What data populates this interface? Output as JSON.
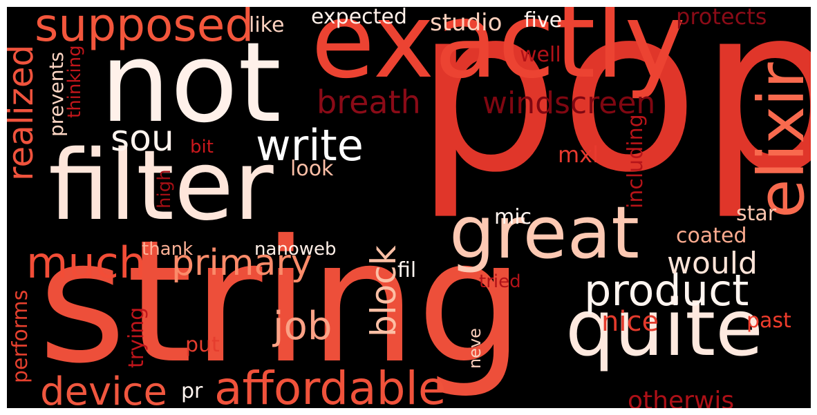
{
  "cloud": {
    "background": "#000000",
    "words": [
      {
        "id": "pop",
        "text": "pop",
        "color": "#e0362a"
      },
      {
        "id": "string",
        "text": "string",
        "color": "#ed4f3a"
      },
      {
        "id": "not",
        "text": "not",
        "color": "#fff1ea"
      },
      {
        "id": "exactly",
        "text": "exactly",
        "color": "#ec4332"
      },
      {
        "id": "filter",
        "text": "filter",
        "color": "#fee6db"
      },
      {
        "id": "quite",
        "text": "quite",
        "color": "#fee9df"
      },
      {
        "id": "great",
        "text": "great",
        "color": "#fdc9b3"
      },
      {
        "id": "elixir",
        "text": "elixir",
        "color": "#f86a4e"
      },
      {
        "id": "supposed",
        "text": "supposed",
        "color": "#f3563c"
      },
      {
        "id": "affordable",
        "text": "affordable",
        "color": "#f0523b"
      },
      {
        "id": "product",
        "text": "product",
        "color": "#fff5f0"
      },
      {
        "id": "much",
        "text": "much",
        "color": "#f24d37"
      },
      {
        "id": "write",
        "text": "write",
        "color": "#ffffff"
      },
      {
        "id": "device",
        "text": "device",
        "color": "#f0573f"
      },
      {
        "id": "primary",
        "text": "primary",
        "color": "#fb8b6a"
      },
      {
        "id": "block",
        "text": "block",
        "color": "#fcbfa5"
      },
      {
        "id": "realized",
        "text": "realized",
        "color": "#f0533d"
      },
      {
        "id": "breath",
        "text": "breath",
        "color": "#8a0b17"
      },
      {
        "id": "windscreen",
        "text": "windscreen",
        "color": "#7f0711"
      },
      {
        "id": "job",
        "text": "job",
        "color": "#fba286"
      },
      {
        "id": "sou",
        "text": "sou",
        "color": "#fff4ee"
      },
      {
        "id": "would",
        "text": "would",
        "color": "#fee4d8"
      },
      {
        "id": "nice",
        "text": "nice",
        "color": "#e33a2c"
      },
      {
        "id": "otherwis",
        "text": "otherwis",
        "color": "#ad1017"
      },
      {
        "id": "studio",
        "text": "studio",
        "color": "#fdd1bd"
      },
      {
        "id": "protects",
        "text": "protects",
        "color": "#8a0b17"
      },
      {
        "id": "expected",
        "text": "expected",
        "color": "#fff1ea"
      },
      {
        "id": "like",
        "text": "like",
        "color": "#fdd3c1"
      },
      {
        "id": "five",
        "text": "five",
        "color": "#fff5f0"
      },
      {
        "id": "well",
        "text": "well",
        "color": "#b11218"
      },
      {
        "id": "prevents",
        "text": "prevents",
        "color": "#fdd6c4"
      },
      {
        "id": "thinking",
        "text": "thinking",
        "color": "#c1161b"
      },
      {
        "id": "bit",
        "text": "bit",
        "color": "#cb181d"
      },
      {
        "id": "mxl",
        "text": "mxl",
        "color": "#e83a2f"
      },
      {
        "id": "look",
        "text": "look",
        "color": "#fcbfa7"
      },
      {
        "id": "high",
        "text": "high",
        "color": "#a50f15"
      },
      {
        "id": "including",
        "text": "including",
        "color": "#b61419"
      },
      {
        "id": "star",
        "text": "star",
        "color": "#fcc6b0"
      },
      {
        "id": "coated",
        "text": "coated",
        "color": "#fcab8f"
      },
      {
        "id": "mic",
        "text": "mic",
        "color": "#fff5f0"
      },
      {
        "id": "thank",
        "text": "thank",
        "color": "#fdb196"
      },
      {
        "id": "nanoweb",
        "text": "nanoweb",
        "color": "#fff0e8"
      },
      {
        "id": "fil",
        "text": "fil",
        "color": "#fff5f0"
      },
      {
        "id": "tried",
        "text": "tried",
        "color": "#b11218"
      },
      {
        "id": "past",
        "text": "past",
        "color": "#ef3c2c"
      },
      {
        "id": "performs",
        "text": "performs",
        "color": "#e5402e"
      },
      {
        "id": "trying",
        "text": "trying",
        "color": "#c0151b"
      },
      {
        "id": "put",
        "text": "put",
        "color": "#e53d2e"
      },
      {
        "id": "neve",
        "text": "neve",
        "color": "#fcd0bd"
      },
      {
        "id": "pr",
        "text": "pr",
        "color": "#fff5f0"
      }
    ]
  }
}
